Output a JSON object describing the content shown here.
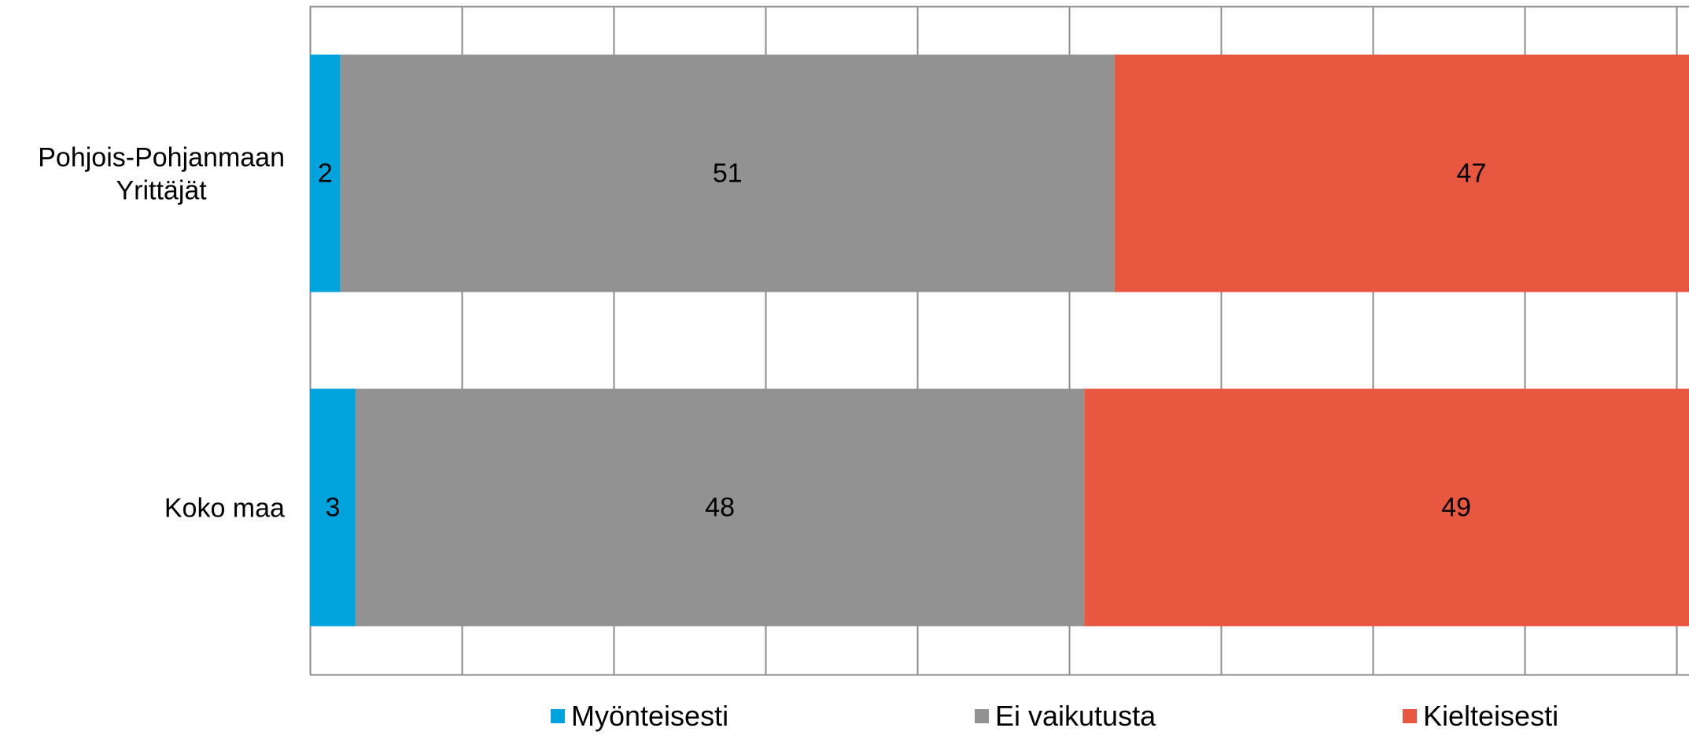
{
  "chart_data": {
    "type": "bar",
    "orientation": "horizontal",
    "stacked": true,
    "percent": true,
    "categories": [
      "Pohjois-Pohjanmaan Yrittäjät",
      "Koko maa"
    ],
    "category_label_lines": [
      [
        "Pohjois-Pohjanmaan",
        "Yrittäjät"
      ],
      [
        "Koko maa"
      ]
    ],
    "series": [
      {
        "name": "Myönteisesti",
        "values": [
          2,
          3
        ],
        "color": "#00A3DC"
      },
      {
        "name": "Ei vaikutusta",
        "values": [
          51,
          48
        ],
        "color": "#929292"
      },
      {
        "name": "Kielteisesti",
        "values": [
          47,
          49
        ],
        "color": "#E8573F"
      }
    ],
    "xlim": [
      0,
      100
    ],
    "grid": true,
    "legend_position": "bottom"
  }
}
